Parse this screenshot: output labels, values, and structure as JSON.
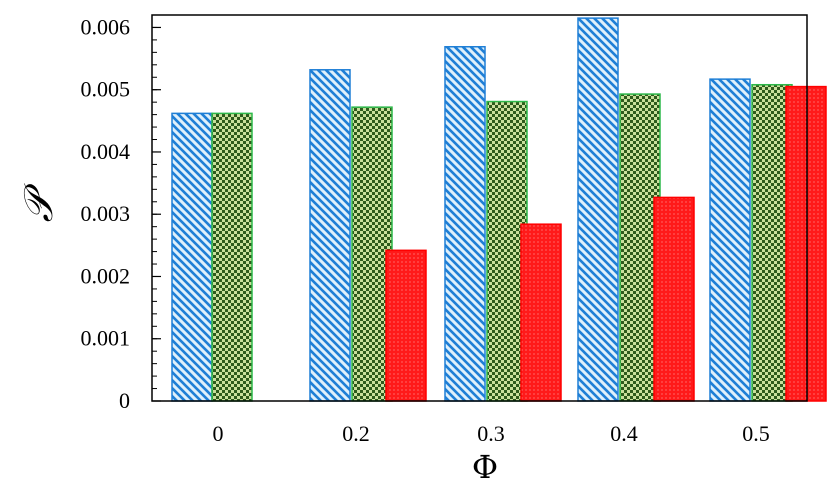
{
  "chart_data": {
    "type": "bar",
    "xlabel": "Φ",
    "ylabel": "𝒫",
    "categories": [
      "0",
      "0.2",
      "0.3",
      "0.4",
      "0.5"
    ],
    "ylim": [
      0,
      0.0062
    ],
    "yticks": [
      "0",
      "0.001",
      "0.002",
      "0.003",
      "0.004",
      "0.005",
      "0.006"
    ],
    "grid": false,
    "legend": "none",
    "series": [
      {
        "values": [
          0.00462,
          0.00532,
          0.00569,
          0.00615,
          0.00517
        ],
        "color": "#1f7fd6",
        "fill": "#dff0fb",
        "pattern": "diagonal-hatch"
      },
      {
        "values": [
          0.00462,
          0.00472,
          0.00481,
          0.00493,
          0.00508
        ],
        "color": "#2db84a",
        "fill": "#c9df9c",
        "pattern": "checker"
      },
      {
        "values": [
          null,
          0.00242,
          0.00284,
          0.00327,
          0.00505
        ],
        "color": "#ff0000",
        "fill": "#ff2222",
        "pattern": "dots"
      }
    ]
  }
}
